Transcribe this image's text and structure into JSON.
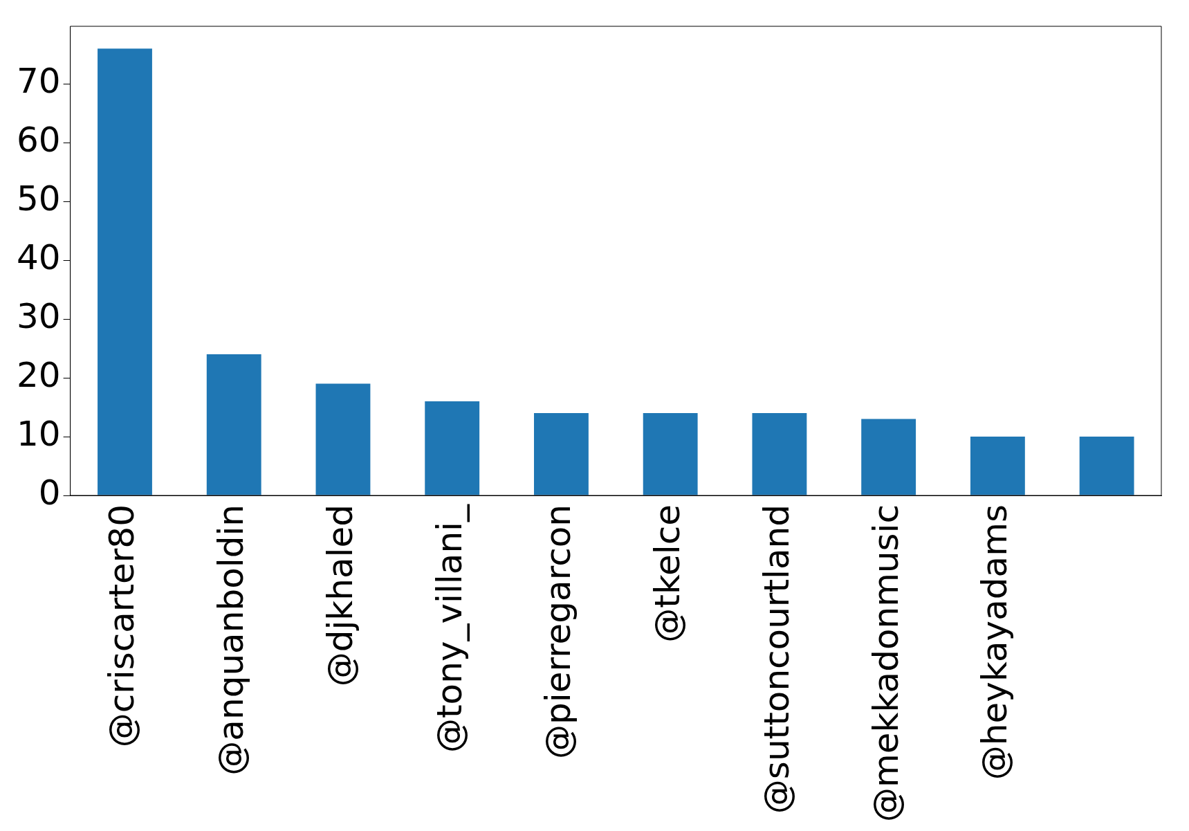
{
  "chart_data": {
    "type": "bar",
    "categories": [
      "@criscarter80",
      "@anquanboldin",
      "@djkhaled",
      "@tony_villani_",
      "@pierregarcon",
      "@tkelce",
      "@suttoncourtland",
      "@mekkadonmusic",
      "@heykayadams",
      null
    ],
    "values": [
      76,
      24,
      19,
      16,
      14,
      14,
      14,
      13,
      10,
      10
    ],
    "color": "#1f77b4",
    "ylim": [
      0,
      79.8
    ],
    "yticks": [
      0,
      10,
      20,
      30,
      40,
      50,
      60,
      70
    ],
    "grid": false,
    "legend": false
  }
}
